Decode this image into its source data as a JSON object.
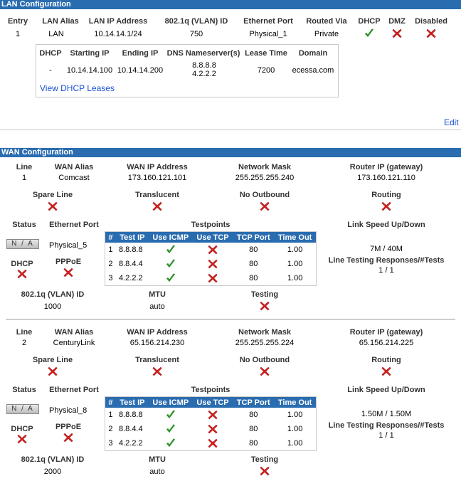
{
  "lan": {
    "section_title": "LAN Configuration",
    "headers": {
      "entry": "Entry",
      "alias": "LAN Alias",
      "ip": "LAN IP Address",
      "vlan": "802.1q (VLAN) ID",
      "eth_port": "Ethernet Port",
      "routed_via": "Routed Via",
      "dhcp": "DHCP",
      "dmz": "DMZ",
      "disabled": "Disabled"
    },
    "row": {
      "entry": "1",
      "alias": "LAN",
      "ip": "10.14.14.1/24",
      "vlan": "750",
      "eth_port": "Physical_1",
      "routed_via": "Private",
      "dhcp": "check",
      "dmz": "x",
      "disabled": "x"
    },
    "dhcp_box": {
      "headers": {
        "dhcp": "DHCP",
        "start": "Starting IP",
        "end": "Ending IP",
        "dns": "DNS Nameserver(s)",
        "lease": "Lease Time",
        "domain": "Domain"
      },
      "row": {
        "dhcp": "-",
        "start": "10.14.14.100",
        "end": "10.14.14.200",
        "dns1": "8.8.8.8",
        "dns2": "4.2.2.2",
        "lease": "7200",
        "domain": "ecessa.com"
      },
      "view_leases": "View DHCP Leases"
    },
    "edit": "Edit"
  },
  "wan": {
    "section_title": "WAN Configuration",
    "labels": {
      "line": "Line",
      "alias": "WAN Alias",
      "ip": "WAN IP Address",
      "mask": "Network Mask",
      "gateway": "Router IP (gateway)",
      "spare": "Spare Line",
      "translucent": "Translucent",
      "no_outbound": "No Outbound",
      "routing": "Routing",
      "status": "Status",
      "eth_port": "Ethernet Port",
      "testpoints": "Testpoints",
      "link_speed": "Link Speed Up/Down",
      "dhcp": "DHCP",
      "pppoe": "PPPoE",
      "line_testing": "Line Testing Responses/#Tests",
      "vlan": "802.1q (VLAN) ID",
      "mtu": "MTU",
      "testing": "Testing"
    },
    "tp_headers": {
      "num": "#",
      "ip": "Test IP",
      "icmp": "Use ICMP",
      "tcp": "Use TCP",
      "port": "TCP Port",
      "timeout": "Time Out"
    },
    "lines": [
      {
        "line": "1",
        "alias": "Comcast",
        "ip": "173.160.121.101",
        "mask": "255.255.255.240",
        "gateway": "173.160.121.110",
        "status": "N / A",
        "eth_port": "Physical_5",
        "link_speed": "7M / 40M",
        "line_testing": "1 / 1",
        "vlan": "1000",
        "mtu": "auto",
        "testpoints": [
          {
            "num": "1",
            "ip": "8.8.8.8",
            "port": "80",
            "timeout": "1.00"
          },
          {
            "num": "2",
            "ip": "8.8.4.4",
            "port": "80",
            "timeout": "1.00"
          },
          {
            "num": "3",
            "ip": "4.2.2.2",
            "port": "80",
            "timeout": "1.00"
          }
        ]
      },
      {
        "line": "2",
        "alias": "CenturyLink",
        "ip": "65.156.214.230",
        "mask": "255.255.255.224",
        "gateway": "65.156.214.225",
        "status": "N / A",
        "eth_port": "Physical_8",
        "link_speed": "1.50M / 1.50M",
        "line_testing": "1 / 1",
        "vlan": "2000",
        "mtu": "auto",
        "testpoints": [
          {
            "num": "1",
            "ip": "8.8.8.8",
            "port": "80",
            "timeout": "1.00"
          },
          {
            "num": "2",
            "ip": "8.8.4.4",
            "port": "80",
            "timeout": "1.00"
          },
          {
            "num": "3",
            "ip": "4.2.2.2",
            "port": "80",
            "timeout": "1.00"
          }
        ]
      }
    ]
  },
  "colors": {
    "header_bg": "#2a6cb0",
    "check": "#2fa32a",
    "x": "#d42020",
    "link": "#1a4fd6"
  }
}
